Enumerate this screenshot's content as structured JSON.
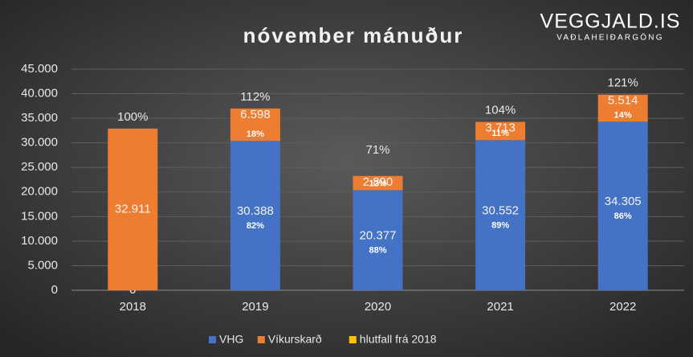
{
  "chart_data": {
    "type": "stacked-bar",
    "title": "nóvember mánuður",
    "logo": "VEGGJALD.IS",
    "logo_subtitle": "VAÐLAHEIÐARGÖNG",
    "categories": [
      "2018",
      "2019",
      "2020",
      "2021",
      "2022"
    ],
    "series": [
      {
        "name": "VHG",
        "color": "#4472c4",
        "values": [
          0,
          30388,
          20377,
          30552,
          34305
        ],
        "value_labels": [
          "0",
          "30.388",
          "20.377",
          "30.552",
          "34.305"
        ],
        "share_labels": [
          null,
          "82%",
          "88%",
          "89%",
          "86%"
        ]
      },
      {
        "name": "Víkurskarð",
        "color": "#ed7d31",
        "values": [
          32911,
          6598,
          2890,
          3713,
          5514
        ],
        "value_labels": [
          "32.911",
          "6.598",
          "2.890",
          "3.713",
          "5.514"
        ],
        "share_labels": [
          null,
          "18%",
          "12%",
          "11%",
          "14%"
        ]
      },
      {
        "name": "hlutfall frá 2018",
        "color": "#ffc000",
        "values": [
          100,
          112,
          71,
          104,
          121
        ],
        "value_labels": [
          "100%",
          "112%",
          "71%",
          "104%",
          "121%"
        ]
      }
    ],
    "ylim": [
      0,
      45000
    ],
    "yticks": [
      0,
      {
        "value": 5000,
        "label": "5.000"
      },
      {
        "value": 10000,
        "label": "10.000"
      },
      {
        "value": 15000,
        "label": "15.000"
      },
      {
        "value": 20000,
        "label": "20.000"
      },
      {
        "value": 25000,
        "label": "25.000"
      },
      {
        "value": 30000,
        "label": "30.000"
      },
      {
        "value": 35000,
        "label": "35.000"
      },
      {
        "value": 40000,
        "label": "40.000"
      },
      {
        "value": 45000,
        "label": "45.000"
      }
    ],
    "grid": true
  }
}
